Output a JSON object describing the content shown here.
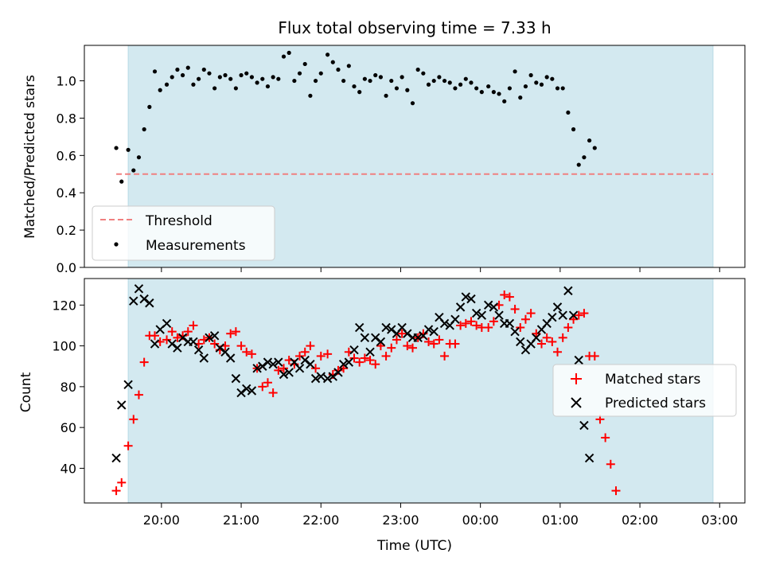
{
  "chart_data": [
    {
      "type": "scatter",
      "title": "Flux total observing time = 7.33 h",
      "xlabel": "",
      "ylabel": "Matched/Predicted stars",
      "ylim": [
        0,
        1.19
      ],
      "yticks": [
        "0.0",
        "0.2",
        "0.4",
        "0.6",
        "0.8",
        "1.0"
      ],
      "ytick_values": [
        0,
        0.2,
        0.4,
        0.6,
        0.8,
        1.0
      ],
      "threshold": {
        "name": "Threshold",
        "value": 0.5,
        "from": "19:26",
        "to": "02:55",
        "color": "#f08080"
      },
      "observing_window": {
        "from": "19:35",
        "to": "02:55",
        "color": "#d3e9f0"
      },
      "legend": {
        "position": "lower-left",
        "entries": [
          "Threshold",
          "Measurements"
        ]
      },
      "series": [
        {
          "name": "Measurements",
          "color": "#000000",
          "x": [
            "19:26",
            "19:30",
            "19:35",
            "19:39",
            "19:43",
            "19:47",
            "19:51",
            "19:55",
            "19:59",
            "20:04",
            "20:08",
            "20:12",
            "20:16",
            "20:20",
            "20:24",
            "20:28",
            "20:32",
            "20:36",
            "20:40",
            "20:44",
            "20:48",
            "20:52",
            "20:56",
            "21:00",
            "21:04",
            "21:08",
            "21:12",
            "21:16",
            "21:20",
            "21:24",
            "21:28",
            "21:32",
            "21:36",
            "21:40",
            "21:44",
            "21:48",
            "21:52",
            "21:56",
            "22:00",
            "22:05",
            "22:09",
            "22:13",
            "22:17",
            "22:21",
            "22:25",
            "22:29",
            "22:33",
            "22:37",
            "22:41",
            "22:45",
            "22:49",
            "22:53",
            "22:57",
            "23:01",
            "23:05",
            "23:09",
            "23:13",
            "23:17",
            "23:21",
            "23:25",
            "23:29",
            "23:33",
            "23:37",
            "23:41",
            "23:45",
            "23:49",
            "23:53",
            "23:57",
            "00:01",
            "00:06",
            "00:10",
            "00:14",
            "00:18",
            "00:22",
            "00:26",
            "00:30",
            "00:34",
            "00:38",
            "00:42",
            "00:46",
            "00:50",
            "00:54",
            "00:58",
            "01:02",
            "01:06",
            "01:10",
            "01:14",
            "01:18",
            "01:22",
            "01:26",
            "01:30",
            "01:34",
            "01:38",
            "01:42",
            "01:46",
            "01:50",
            "01:54",
            "01:58",
            "02:02",
            "02:07",
            "02:11",
            "02:15",
            "02:19",
            "02:23",
            "02:27",
            "02:31",
            "02:35",
            "02:39",
            "02:43",
            "02:47",
            "02:51",
            "02:55"
          ],
          "y": [
            0.64,
            0.46,
            0.63,
            0.52,
            0.59,
            0.74,
            0.86,
            1.05,
            0.95,
            0.98,
            1.02,
            1.06,
            1.03,
            1.07,
            0.98,
            1.01,
            1.06,
            1.04,
            0.96,
            1.02,
            1.03,
            1.01,
            0.96,
            1.03,
            1.04,
            1.02,
            0.99,
            1.01,
            0.97,
            1.02,
            1.01,
            1.13,
            1.15,
            1.0,
            1.04,
            1.09,
            0.92,
            1.0,
            1.04,
            1.14,
            1.1,
            1.06,
            1.0,
            1.08,
            0.97,
            0.94,
            1.01,
            1.0,
            1.03,
            1.02,
            0.92,
            1.0,
            0.96,
            1.02,
            0.95,
            0.88,
            1.06,
            1.04,
            0.98,
            1.0,
            1.02,
            1.0,
            0.99,
            0.96,
            0.98,
            1.01,
            0.99,
            0.96,
            0.94,
            0.97,
            0.94,
            0.93,
            0.89,
            0.96,
            1.05,
            0.91,
            0.97,
            1.03,
            0.99,
            0.98,
            1.02,
            1.01,
            0.96,
            0.96,
            0.83,
            0.74,
            0.55,
            0.59,
            0.68,
            0.64,
            null,
            null,
            null,
            null,
            null,
            null,
            null,
            null,
            null,
            null,
            null,
            null,
            null,
            null,
            null,
            null,
            null,
            null,
            null,
            null,
            null,
            null
          ]
        }
      ]
    },
    {
      "type": "scatter",
      "title": "",
      "xlabel": "Time (UTC)",
      "ylabel": "Count",
      "ylim": [
        23,
        133
      ],
      "yticks": [
        "40",
        "60",
        "80",
        "100",
        "120"
      ],
      "ytick_values": [
        40,
        60,
        80,
        100,
        120
      ],
      "xlim": [
        "19:02",
        "03:19"
      ],
      "xticks": [
        "20:00",
        "21:00",
        "22:00",
        "23:00",
        "00:00",
        "01:00",
        "02:00",
        "03:00"
      ],
      "legend": {
        "position": "center-right",
        "entries": [
          "Matched stars",
          "Predicted stars"
        ]
      },
      "series": [
        {
          "name": "Matched stars",
          "marker": "+",
          "color": "#ff0000",
          "y": [
            29,
            33,
            51,
            64,
            76,
            92,
            105,
            105,
            102,
            103,
            107,
            104,
            105,
            107,
            110,
            101,
            103,
            104,
            101,
            98,
            100,
            106,
            107,
            100,
            97,
            96,
            89,
            80,
            82,
            77,
            88,
            89,
            93,
            91,
            95,
            97,
            100,
            89,
            95,
            96,
            86,
            88,
            89,
            97,
            94,
            92,
            94,
            93,
            91,
            100,
            95,
            99,
            103,
            106,
            100,
            99,
            104,
            106,
            102,
            101,
            103,
            95,
            101,
            101,
            110,
            111,
            112,
            110,
            109,
            109,
            112,
            120,
            125,
            124,
            118,
            109,
            113,
            116,
            106,
            101,
            104,
            102,
            97,
            104,
            109,
            113,
            115,
            116,
            95,
            95,
            64,
            55,
            42,
            29
          ]
        },
        {
          "name": "Predicted stars",
          "marker": "x",
          "color": "#000000",
          "y": [
            45,
            71,
            81,
            122,
            128,
            123,
            121,
            101,
            108,
            111,
            101,
            99,
            104,
            102,
            102,
            98,
            94,
            104,
            105,
            99,
            97,
            94,
            84,
            77,
            79,
            78,
            89,
            90,
            92,
            91,
            92,
            86,
            87,
            92,
            89,
            93,
            91,
            84,
            85,
            84,
            85,
            87,
            91,
            92,
            98,
            109,
            104,
            97,
            104,
            102,
            109,
            108,
            106,
            109,
            106,
            104,
            104,
            105,
            108,
            107,
            114,
            111,
            110,
            113,
            119,
            124,
            123,
            116,
            115,
            120,
            119,
            115,
            111,
            111,
            107,
            102,
            98,
            101,
            104,
            108,
            111,
            114,
            119,
            115,
            127,
            115,
            93,
            61,
            45
          ]
        }
      ]
    }
  ]
}
